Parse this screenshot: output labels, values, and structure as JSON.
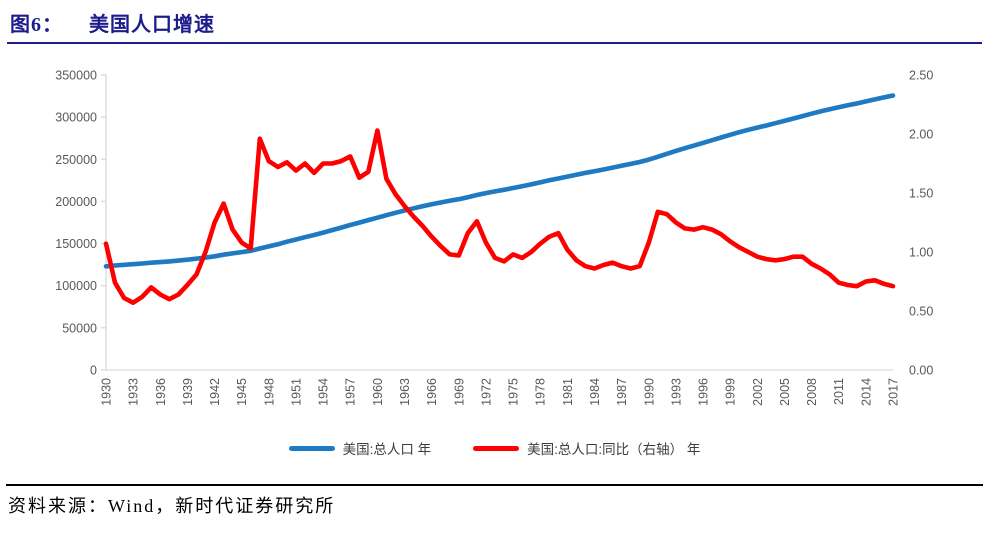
{
  "header": {
    "figure_label": "图6：",
    "title": "美国人口增速",
    "accent_color": "#1C1C8C"
  },
  "source": {
    "text": "资料来源：Wind，新时代证券研究所"
  },
  "style": {
    "axis_line_color": "#D9D9D9",
    "tick_label_color": "#595959",
    "footer_rule_color": "#000000"
  },
  "chart_data": {
    "type": "line",
    "grid": "off",
    "legend_position": "bottom",
    "x_axis": {
      "first": 1930,
      "last": 2017,
      "label_step": 3,
      "labels": [
        "1930",
        "1933",
        "1936",
        "1939",
        "1942",
        "1945",
        "1948",
        "1951",
        "1954",
        "1957",
        "1960",
        "1963",
        "1966",
        "1969",
        "1972",
        "1975",
        "1978",
        "1981",
        "1984",
        "1987",
        "1990",
        "1993",
        "1996",
        "1999",
        "2002",
        "2005",
        "2008",
        "2011",
        "2014",
        "2017"
      ]
    },
    "left_axis": {
      "min": 0,
      "max": 350000,
      "step": 50000,
      "labels": [
        "0",
        "50000",
        "100000",
        "150000",
        "200000",
        "250000",
        "300000",
        "350000"
      ]
    },
    "right_axis": {
      "min": 0,
      "max": 2.5,
      "step": 0.5,
      "labels": [
        "0.00",
        "0.50",
        "1.00",
        "1.50",
        "2.00",
        "2.50"
      ]
    },
    "series": [
      {
        "name": "美国:总人口 年",
        "axis": "left",
        "color": "#1E7AC2",
        "values": [
          123077,
          124040,
          124840,
          125579,
          126374,
          127250,
          128053,
          128825,
          129825,
          130880,
          132122,
          133402,
          134860,
          136739,
          138397,
          139928,
          141389,
          144126,
          146631,
          149188,
          152271,
          154878,
          157553,
          160184,
          163026,
          165931,
          168903,
          171984,
          174882,
          177830,
          180671,
          183691,
          186538,
          189242,
          191889,
          194303,
          196560,
          198712,
          200706,
          202677,
          205052,
          207661,
          209896,
          211909,
          213854,
          215973,
          218035,
          220239,
          222585,
          225055,
          227225,
          229466,
          231664,
          233792,
          235825,
          237924,
          240133,
          242289,
          244499,
          246819,
          249623,
          252981,
          256514,
          259919,
          263126,
          266278,
          269394,
          272657,
          275854,
          279040,
          282162,
          284969,
          287625,
          290108,
          292805,
          295517,
          298380,
          301231,
          304094,
          306772,
          309348,
          311644,
          313993,
          316235,
          318623,
          321039,
          323406,
          325719
        ]
      },
      {
        "name": "美国:总人口:同比（右轴） 年",
        "axis": "right",
        "color": "#FF0000",
        "values": [
          1.07,
          0.74,
          0.61,
          0.57,
          0.62,
          0.7,
          0.64,
          0.6,
          0.64,
          0.72,
          0.81,
          1.0,
          1.25,
          1.41,
          1.19,
          1.08,
          1.03,
          1.96,
          1.77,
          1.72,
          1.76,
          1.69,
          1.75,
          1.67,
          1.75,
          1.75,
          1.77,
          1.81,
          1.63,
          1.68,
          2.03,
          1.62,
          1.49,
          1.39,
          1.3,
          1.22,
          1.13,
          1.05,
          0.98,
          0.97,
          1.16,
          1.26,
          1.08,
          0.95,
          0.92,
          0.98,
          0.95,
          1.0,
          1.07,
          1.13,
          1.16,
          1.02,
          0.93,
          0.88,
          0.86,
          0.89,
          0.91,
          0.88,
          0.86,
          0.88,
          1.08,
          1.34,
          1.32,
          1.25,
          1.2,
          1.19,
          1.21,
          1.19,
          1.15,
          1.09,
          1.04,
          1.0,
          0.96,
          0.94,
          0.93,
          0.94,
          0.96,
          0.96,
          0.9,
          0.86,
          0.81,
          0.74,
          0.72,
          0.71,
          0.75,
          0.76,
          0.73,
          0.71
        ]
      }
    ]
  }
}
